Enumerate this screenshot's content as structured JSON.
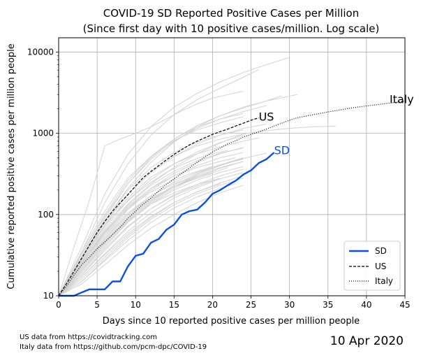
{
  "chart_data": {
    "type": "line",
    "title": "COVID-19 SD Reported Positive Cases per Million",
    "subtitle": "(Since first day with 10 positive cases/million. Log scale)",
    "xlabel": "Days since 10 reported positive cases per million people",
    "ylabel": "Cumulative reported positive cases per million people",
    "xlim": [
      0,
      45
    ],
    "ylim": [
      10,
      15000
    ],
    "yscale": "log",
    "grid": true,
    "legend_position": "lower-right",
    "x_ticks": [
      "0",
      "5",
      "10",
      "15",
      "20",
      "25",
      "30",
      "35",
      "40",
      "45"
    ],
    "y_ticks": [
      "10",
      "100",
      "1000",
      "10000"
    ],
    "series": [
      {
        "name": "SD",
        "color": "#0a50e6",
        "style": "solid",
        "x": [
          0,
          1,
          2,
          3,
          4,
          5,
          6,
          7,
          8,
          9,
          10,
          11,
          12,
          13,
          14,
          15,
          16,
          17,
          18,
          19,
          20,
          21,
          22,
          23,
          24,
          25,
          26,
          27,
          28
        ],
        "y": [
          10,
          10,
          10,
          11,
          12,
          12,
          12,
          15,
          15,
          23,
          31,
          33,
          45,
          50,
          65,
          75,
          100,
          110,
          115,
          140,
          180,
          200,
          230,
          260,
          310,
          350,
          430,
          480,
          580
        ]
      },
      {
        "name": "US",
        "color": "#000000",
        "style": "dashed",
        "x": [
          0,
          1,
          2,
          3,
          4,
          5,
          6,
          7,
          8,
          9,
          10,
          11,
          12,
          13,
          14,
          15,
          16,
          17,
          18,
          19,
          20,
          21,
          22,
          23,
          24,
          25,
          26
        ],
        "y": [
          10,
          14,
          20,
          29,
          42,
          60,
          82,
          110,
          140,
          175,
          225,
          285,
          340,
          400,
          470,
          550,
          630,
          720,
          800,
          880,
          970,
          1050,
          1130,
          1230,
          1330,
          1450,
          1550
        ]
      },
      {
        "name": "Italy",
        "color": "#000000",
        "style": "dotted",
        "x": [
          0,
          1,
          2,
          3,
          4,
          5,
          6,
          7,
          8,
          9,
          10,
          11,
          12,
          13,
          14,
          15,
          16,
          17,
          18,
          19,
          20,
          21,
          22,
          23,
          24,
          25,
          26,
          27,
          28,
          29,
          30,
          31,
          32,
          33,
          34,
          35,
          36,
          37,
          38,
          39,
          40,
          41,
          42,
          43,
          44,
          45
        ],
        "y": [
          10,
          13,
          18,
          24,
          30,
          38,
          46,
          57,
          70,
          90,
          110,
          135,
          160,
          195,
          235,
          275,
          320,
          375,
          440,
          510,
          590,
          660,
          740,
          810,
          900,
          970,
          1040,
          1130,
          1230,
          1330,
          1450,
          1550,
          1620,
          1690,
          1760,
          1830,
          1900,
          1970,
          2050,
          2110,
          2170,
          2230,
          2290,
          2360,
          2420,
          2480
        ]
      }
    ],
    "annotations": [
      {
        "text": "US",
        "x": 26,
        "y": 1550,
        "color": "#000000"
      },
      {
        "text": "SD",
        "x": 28,
        "y": 600,
        "color": "#0a50e6"
      },
      {
        "text": "Italy",
        "x": 43,
        "y": 2550,
        "color": "#000000"
      }
    ],
    "background_state_curves": {
      "color": "#d3d3d3",
      "curves": [
        {
          "x": [
            0,
            3,
            6,
            9,
            12,
            15,
            18,
            21,
            24,
            27,
            30
          ],
          "y": [
            10,
            40,
            180,
            550,
            1200,
            2100,
            3100,
            4300,
            5600,
            7000,
            8600
          ]
        },
        {
          "x": [
            0,
            3,
            6,
            9,
            12,
            15,
            18,
            21,
            24,
            26
          ],
          "y": [
            10,
            35,
            140,
            420,
            950,
            1700,
            2600,
            3600,
            4900,
            6100
          ]
        },
        {
          "x": [
            0,
            2,
            4,
            6,
            8,
            10,
            12,
            14,
            16,
            18,
            20,
            22,
            24
          ],
          "y": [
            10,
            40,
            150,
            700,
            850,
            1000,
            1200,
            1500,
            1900,
            2300,
            2700,
            3000,
            3300
          ]
        },
        {
          "x": [
            0,
            3,
            6,
            9,
            12,
            15,
            18,
            21,
            24,
            27,
            29
          ],
          "y": [
            10,
            30,
            90,
            240,
            500,
            850,
            1250,
            1650,
            2050,
            2500,
            2900
          ]
        },
        {
          "x": [
            0,
            3,
            6,
            9,
            12,
            15,
            18,
            21,
            24,
            27,
            30,
            33,
            36
          ],
          "y": [
            10,
            28,
            75,
            180,
            330,
            520,
            700,
            850,
            980,
            1080,
            1150,
            1200,
            1230
          ]
        },
        {
          "x": [
            0,
            3,
            6,
            9,
            12,
            15,
            18,
            21,
            24
          ],
          "y": [
            10,
            35,
            110,
            280,
            520,
            820,
            1100,
            1350,
            1600
          ]
        },
        {
          "x": [
            0,
            3,
            6,
            9,
            12,
            15,
            18,
            21,
            24
          ],
          "y": [
            10,
            30,
            85,
            200,
            380,
            580,
            780,
            950,
            1100
          ]
        },
        {
          "x": [
            0,
            3,
            6,
            9,
            12,
            15,
            18,
            21,
            24,
            26
          ],
          "y": [
            10,
            28,
            72,
            160,
            290,
            420,
            560,
            680,
            800,
            880
          ]
        },
        {
          "x": [
            0,
            3,
            6,
            9,
            12,
            15,
            18,
            21,
            24
          ],
          "y": [
            10,
            25,
            60,
            130,
            230,
            340,
            460,
            570,
            660
          ]
        },
        {
          "x": [
            0,
            3,
            6,
            9,
            12,
            15,
            18,
            21,
            24
          ],
          "y": [
            10,
            24,
            55,
            115,
            200,
            300,
            400,
            500,
            580
          ]
        },
        {
          "x": [
            0,
            3,
            6,
            9,
            12,
            15,
            18,
            21,
            23
          ],
          "y": [
            10,
            26,
            62,
            125,
            210,
            300,
            380,
            450,
            500
          ]
        },
        {
          "x": [
            0,
            3,
            6,
            9,
            12,
            15,
            18,
            21,
            24
          ],
          "y": [
            10,
            22,
            50,
            100,
            170,
            250,
            330,
            410,
            480
          ]
        },
        {
          "x": [
            0,
            3,
            6,
            9,
            12,
            15,
            18,
            21,
            24
          ],
          "y": [
            10,
            20,
            45,
            90,
            150,
            220,
            300,
            380,
            450
          ]
        },
        {
          "x": [
            0,
            3,
            6,
            9,
            12,
            15,
            18,
            21,
            22
          ],
          "y": [
            10,
            22,
            48,
            95,
            155,
            220,
            290,
            350,
            380
          ]
        },
        {
          "x": [
            0,
            3,
            6,
            9,
            12,
            15,
            18,
            21,
            24
          ],
          "y": [
            10,
            19,
            40,
            80,
            135,
            200,
            265,
            330,
            390
          ]
        },
        {
          "x": [
            0,
            3,
            6,
            9,
            12,
            15,
            18,
            21,
            24
          ],
          "y": [
            10,
            18,
            36,
            70,
            118,
            175,
            235,
            300,
            360
          ]
        },
        {
          "x": [
            0,
            3,
            6,
            9,
            12,
            15,
            18,
            21
          ],
          "y": [
            10,
            21,
            44,
            85,
            135,
            185,
            235,
            280
          ]
        },
        {
          "x": [
            0,
            3,
            6,
            9,
            12,
            15,
            18,
            21,
            24
          ],
          "y": [
            10,
            17,
            33,
            62,
            105,
            160,
            215,
            275,
            330
          ]
        },
        {
          "x": [
            0,
            3,
            6,
            9,
            12,
            15,
            18,
            21
          ],
          "y": [
            10,
            17,
            32,
            58,
            95,
            140,
            190,
            240
          ]
        },
        {
          "x": [
            0,
            3,
            6,
            9,
            12,
            15,
            18,
            20
          ],
          "y": [
            10,
            23,
            52,
            100,
            160,
            220,
            280,
            320
          ]
        },
        {
          "x": [
            0,
            3,
            6,
            9,
            12,
            15,
            18,
            21,
            24
          ],
          "y": [
            10,
            16,
            30,
            55,
            92,
            140,
            190,
            245,
            300
          ]
        },
        {
          "x": [
            0,
            3,
            6,
            9,
            12,
            15,
            18,
            21,
            23
          ],
          "y": [
            10,
            15,
            27,
            48,
            80,
            120,
            165,
            210,
            240
          ]
        },
        {
          "x": [
            0,
            3,
            6,
            9,
            12,
            15,
            18,
            21,
            24
          ],
          "y": [
            10,
            15,
            28,
            52,
            88,
            132,
            180,
            230,
            280
          ]
        },
        {
          "x": [
            0,
            2,
            4,
            6,
            8,
            10,
            12,
            14,
            16,
            18,
            20
          ],
          "y": [
            10,
            18,
            35,
            60,
            95,
            140,
            190,
            240,
            290,
            340,
            390
          ]
        },
        {
          "x": [
            0,
            3,
            6,
            9,
            12,
            15,
            18,
            21,
            24
          ],
          "y": [
            10,
            26,
            64,
            135,
            240,
            380,
            560,
            760,
            980
          ]
        },
        {
          "x": [
            0,
            3,
            6,
            9,
            12,
            15,
            18,
            21,
            24,
            27
          ],
          "y": [
            10,
            32,
            95,
            240,
            480,
            800,
            1150,
            1500,
            1850,
            2200
          ]
        },
        {
          "x": [
            0,
            3,
            6,
            9,
            12,
            15,
            18,
            21,
            24,
            27
          ],
          "y": [
            10,
            30,
            80,
            180,
            330,
            520,
            740,
            950,
            1150,
            1300
          ]
        },
        {
          "x": [
            0,
            3,
            6,
            9,
            12,
            15,
            18,
            21,
            24
          ],
          "y": [
            10,
            20,
            42,
            82,
            140,
            210,
            290,
            370,
            450
          ]
        },
        {
          "x": [
            0,
            3,
            6,
            9,
            12,
            15,
            18,
            21
          ],
          "y": [
            10,
            18,
            38,
            72,
            118,
            170,
            225,
            280
          ]
        },
        {
          "x": [
            0,
            3,
            6,
            9,
            12,
            15,
            18,
            21,
            24
          ],
          "y": [
            10,
            14,
            24,
            42,
            68,
            100,
            140,
            185,
            230
          ]
        },
        {
          "x": [
            0,
            3,
            6,
            9,
            12,
            15,
            18,
            21,
            24
          ],
          "y": [
            10,
            22,
            46,
            90,
            150,
            230,
            320,
            410,
            500
          ]
        },
        {
          "x": [
            0,
            3,
            6,
            9,
            12,
            15,
            18
          ],
          "y": [
            10,
            24,
            55,
            105,
            170,
            240,
            300
          ]
        },
        {
          "x": [
            0,
            3,
            6,
            9,
            12,
            15,
            18,
            21,
            24
          ],
          "y": [
            10,
            33,
            100,
            260,
            520,
            850,
            1200,
            1500,
            1750
          ]
        },
        {
          "x": [
            0,
            2,
            4,
            6,
            8,
            10,
            12,
            14,
            16,
            18,
            20,
            22
          ],
          "y": [
            10,
            20,
            40,
            75,
            120,
            180,
            250,
            330,
            410,
            490,
            560,
            620
          ]
        },
        {
          "x": [
            0,
            3,
            6,
            9,
            12,
            15,
            18,
            21,
            24,
            27
          ],
          "y": [
            10,
            21,
            44,
            86,
            145,
            220,
            310,
            400,
            490,
            570
          ]
        },
        {
          "x": [
            0,
            3,
            6,
            9,
            12,
            15,
            18,
            21,
            24
          ],
          "y": [
            10,
            25,
            58,
            120,
            210,
            320,
            440,
            560,
            670
          ]
        },
        {
          "x": [
            0,
            3,
            6,
            9,
            12,
            15,
            18,
            21,
            24
          ],
          "y": [
            10,
            27,
            68,
            150,
            270,
            420,
            590,
            770,
            940
          ]
        },
        {
          "x": [
            0,
            3,
            6,
            9,
            12,
            15,
            18,
            21,
            24,
            27,
            31
          ],
          "y": [
            10,
            30,
            85,
            210,
            440,
            780,
            1200,
            1650,
            2100,
            2500,
            3000
          ]
        }
      ]
    }
  },
  "footer": {
    "source_us": "US data from https://covidtracking.com",
    "source_italy": "Italy data from https://github.com/pcm-dpc/COVID-19",
    "date": "10 Apr 2020"
  }
}
